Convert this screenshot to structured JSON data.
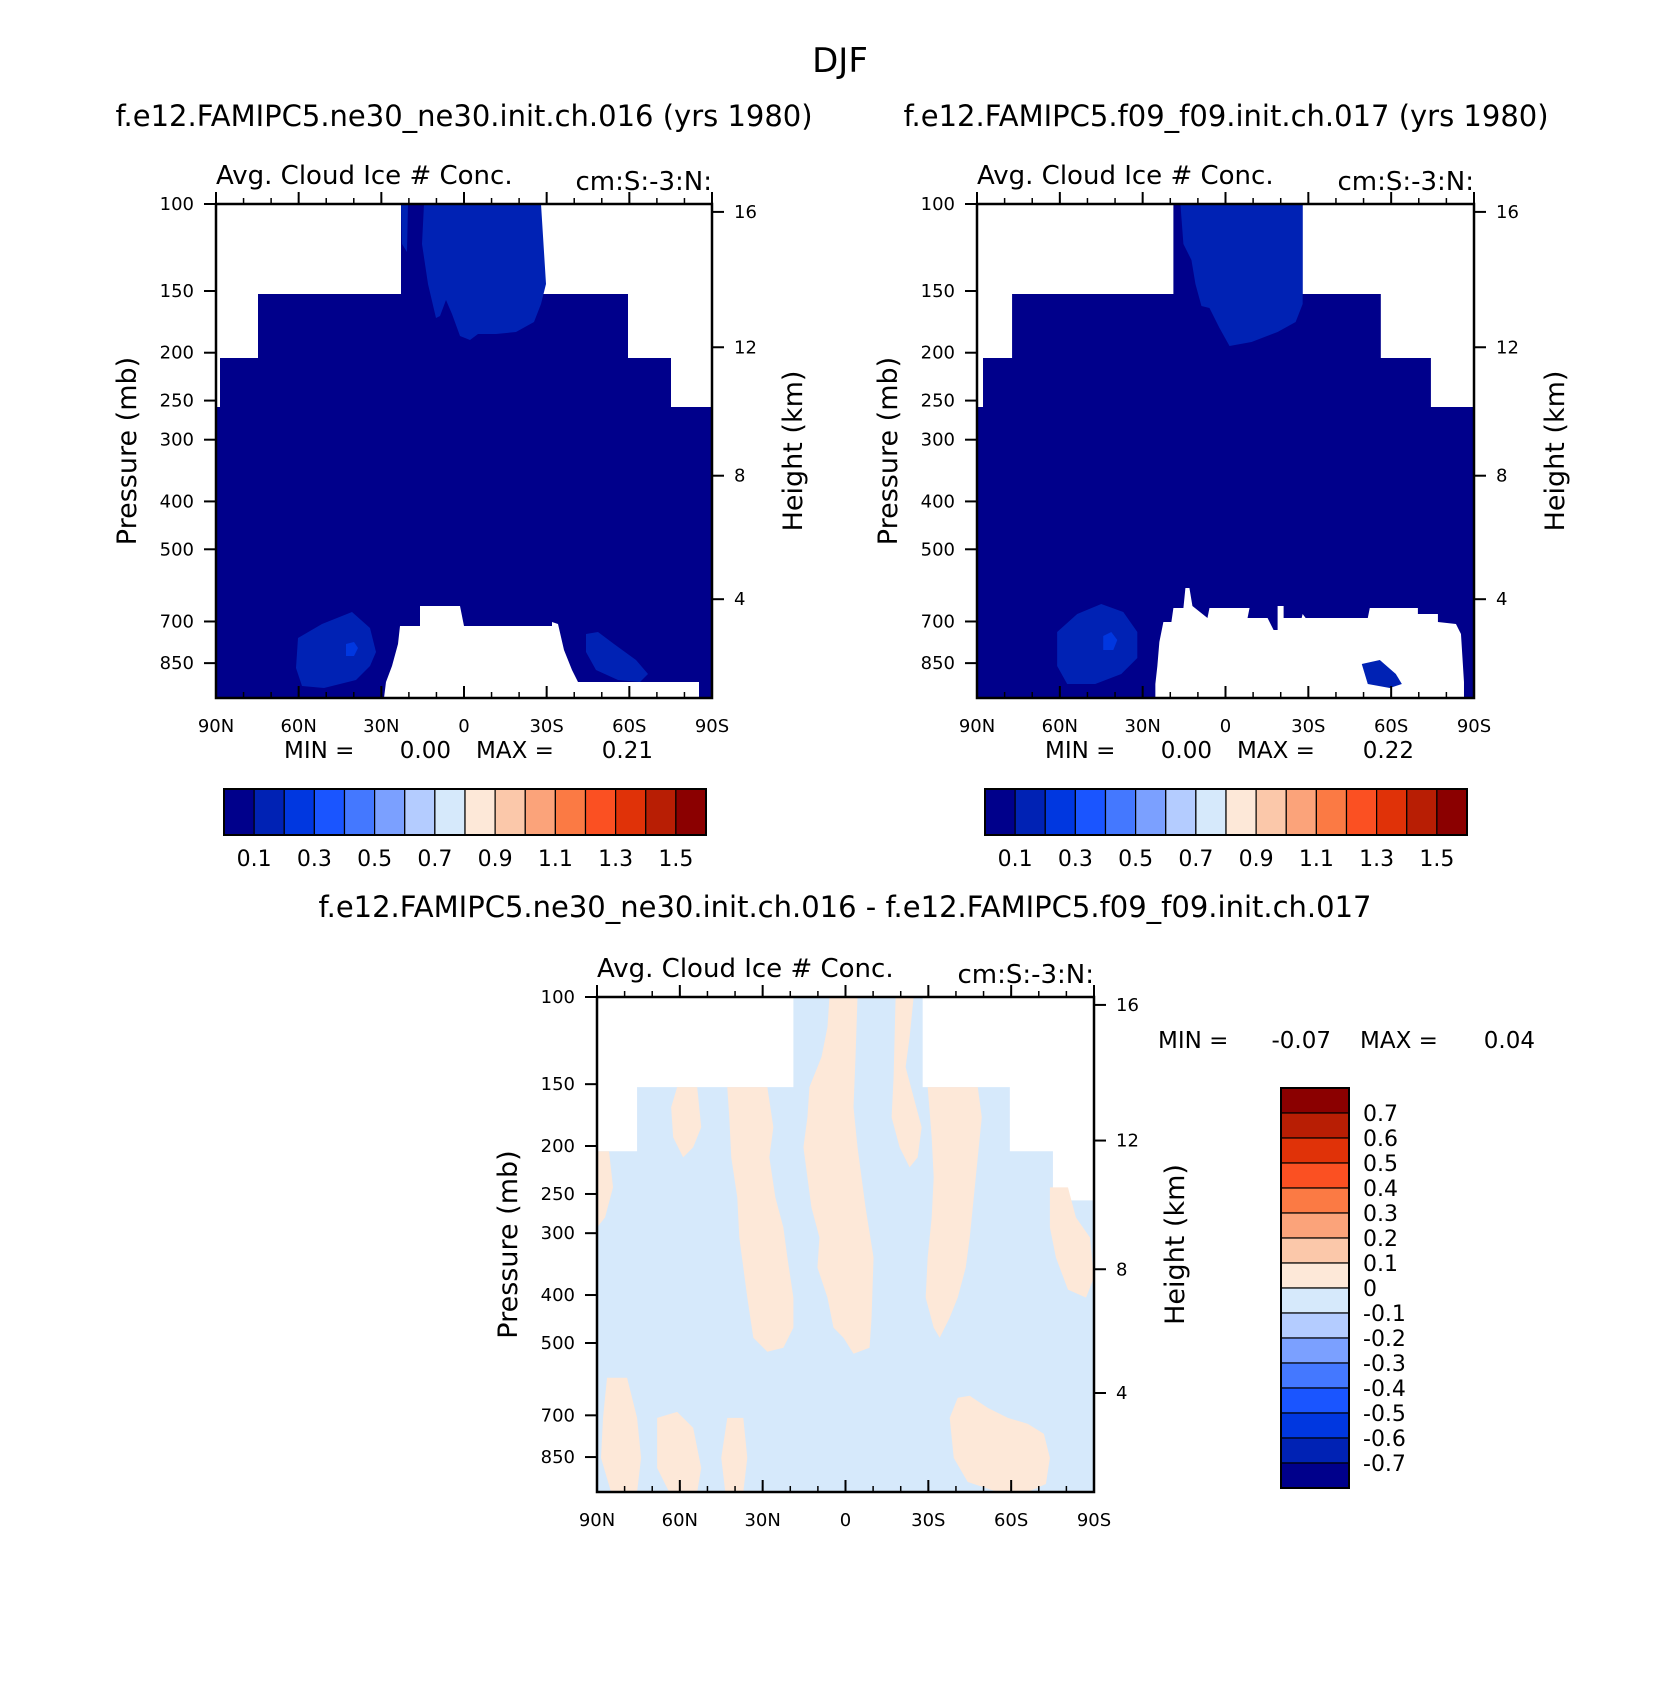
{
  "figure": {
    "title": "DJF",
    "panels": [
      {
        "id": "p1",
        "case_title": "f.e12.FAMIPC5.ne30_ne30.init.ch.016 (yrs 1980)",
        "var_title": "Avg. Cloud Ice # Conc.",
        "units": "cm:S:-3:N:",
        "ylabel": "Pressure (mb)",
        "ylabel_right": "Height (km)",
        "min_label": "MIN =",
        "min_value": "0.00",
        "max_label": "MAX =",
        "max_value": "0.21"
      },
      {
        "id": "p2",
        "case_title": "f.e12.FAMIPC5.f09_f09.init.ch.017 (yrs 1980)",
        "var_title": "Avg. Cloud Ice # Conc.",
        "units": "cm:S:-3:N:",
        "ylabel": "Pressure (mb)",
        "ylabel_right": "Height (km)",
        "min_label": "MIN =",
        "min_value": "0.00",
        "max_label": "MAX =",
        "max_value": "0.22"
      },
      {
        "id": "p3",
        "case_title": "f.e12.FAMIPC5.ne30_ne30.init.ch.016 - f.e12.FAMIPC5.f09_f09.init.ch.017",
        "var_title": "Avg. Cloud Ice # Conc.",
        "units": "cm:S:-3:N:",
        "ylabel": "Pressure (mb)",
        "ylabel_right": "Height (km)",
        "min_label": "MIN =",
        "min_value": "-0.07",
        "max_label": "MAX =",
        "max_value": "0.04"
      }
    ],
    "x_ticks": [
      "90N",
      "60N",
      "30N",
      "0",
      "30S",
      "60S",
      "90S"
    ],
    "y_ticks_pressure": [
      "100",
      "150",
      "200",
      "250",
      "300",
      "400",
      "500",
      "700",
      "850"
    ],
    "y_ticks_height": [
      "16",
      "12",
      "8",
      "4"
    ]
  },
  "colorbars": {
    "abs": {
      "colors": [
        "#00008b",
        "#0022b4",
        "#0037e0",
        "#1a55ff",
        "#4478ff",
        "#7ba0ff",
        "#b4ccff",
        "#d6e9fb",
        "#fde8d8",
        "#fbc8aa",
        "#fba37a",
        "#fb7a44",
        "#fb5022",
        "#e03208",
        "#b81e04",
        "#8b0000"
      ],
      "labels": [
        "0.1",
        "0.3",
        "0.5",
        "0.7",
        "0.9",
        "1.1",
        "1.3",
        "1.5"
      ]
    },
    "diff": {
      "colors": [
        "#8b0000",
        "#b81e04",
        "#e03208",
        "#fb5022",
        "#fb7a44",
        "#fba37a",
        "#fbc8aa",
        "#fde8d8",
        "#d6e9fb",
        "#b4ccff",
        "#7ba0ff",
        "#4478ff",
        "#1a55ff",
        "#0037e0",
        "#0022b4",
        "#00008b"
      ],
      "labels": [
        "0.7",
        "0.6",
        "0.5",
        "0.4",
        "0.3",
        "0.2",
        "0.1",
        "0",
        "-0.1",
        "-0.2",
        "-0.3",
        "-0.4",
        "-0.5",
        "-0.6",
        "-0.7"
      ]
    }
  },
  "chart_data": [
    {
      "type": "heatmap",
      "title": "f.e12.FAMIPC5.ne30_ne30.init.ch.016 (yrs 1980)",
      "subtitle": "Avg. Cloud Ice # Conc.",
      "units": "cm:S:-3:N:",
      "xlabel": "",
      "ylabel": "Pressure (mb)",
      "ylabel_right": "Height (km)",
      "x_ticks": [
        "90N",
        "60N",
        "30N",
        "0",
        "30S",
        "60S",
        "90S"
      ],
      "xlim": [
        90,
        -90
      ],
      "y_ticks": [
        100,
        150,
        200,
        250,
        300,
        400,
        500,
        700,
        850
      ],
      "ylim": [
        100,
        1000
      ],
      "y_scale": "log",
      "min": 0.0,
      "max": 0.21,
      "levels": [
        0.1,
        0.2,
        0.3,
        0.4,
        0.5,
        0.6,
        0.7,
        0.8,
        0.9,
        1.0,
        1.1,
        1.2,
        1.3,
        1.4,
        1.5
      ],
      "fill_lat_range_by_level": [
        {
          "p": 100,
          "lat": [
            23,
            -28
          ]
        },
        {
          "p": 150,
          "lat": [
            75,
            -58
          ]
        },
        {
          "p": 200,
          "lat": [
            88,
            -74
          ]
        },
        {
          "p": 250,
          "lat": [
            90,
            -90
          ]
        },
        {
          "p": 600,
          "lat": [
            90,
            -90
          ]
        },
        {
          "p": 700,
          "lat": [
            90,
            -90
          ]
        },
        {
          "p": 850,
          "lat": [
            90,
            -90
          ]
        }
      ],
      "no_data_below_ground": [
        {
          "p": 600,
          "lat": [
            15,
            1
          ]
        },
        {
          "p": 640,
          "lat": [
            24,
            -34
          ]
        },
        {
          "p": 850,
          "lat": [
            28,
            -40
          ]
        }
      ],
      "features": [
        {
          "level": "0-0.1",
          "region": "background"
        },
        {
          "level": "0.1-0.2",
          "region": "tropical upper troposphere",
          "lat": [
            17,
            -28
          ],
          "p": [
            100,
            190
          ]
        },
        {
          "level": "0.1-0.2",
          "region": "northern lower troposphere",
          "lat": [
            60,
            32
          ],
          "p": [
            620,
            850
          ]
        },
        {
          "level": "0.2",
          "region": "core",
          "lat": [
            42,
            38
          ],
          "p": [
            720,
            760
          ]
        },
        {
          "level": "0.1-0.2",
          "region": "southern lower troposphere",
          "lat": [
            -44,
            -67
          ],
          "p": [
            690,
            830
          ]
        }
      ]
    },
    {
      "type": "heatmap",
      "title": "f.e12.FAMIPC5.f09_f09.init.ch.017 (yrs 1980)",
      "subtitle": "Avg. Cloud Ice # Conc.",
      "units": "cm:S:-3:N:",
      "xlabel": "",
      "ylabel": "Pressure (mb)",
      "ylabel_right": "Height (km)",
      "x_ticks": [
        "90N",
        "60N",
        "30N",
        "0",
        "30S",
        "60S",
        "90S"
      ],
      "xlim": [
        90,
        -90
      ],
      "y_ticks": [
        100,
        150,
        200,
        250,
        300,
        400,
        500,
        700,
        850
      ],
      "ylim": [
        100,
        1000
      ],
      "y_scale": "log",
      "min": 0.0,
      "max": 0.22,
      "levels": [
        0.1,
        0.2,
        0.3,
        0.4,
        0.5,
        0.6,
        0.7,
        0.8,
        0.9,
        1.0,
        1.1,
        1.2,
        1.3,
        1.4,
        1.5
      ],
      "features": [
        {
          "level": "0-0.1",
          "region": "background"
        },
        {
          "level": "0.1-0.2",
          "region": "tropical upper troposphere",
          "lat": [
            18,
            -28
          ],
          "p": [
            100,
            195
          ]
        },
        {
          "level": "0.1-0.2",
          "region": "northern lower troposphere",
          "lat": [
            60,
            30
          ],
          "p": [
            620,
            850
          ]
        },
        {
          "level": "0.2",
          "region": "core",
          "lat": [
            43,
            37
          ],
          "p": [
            720,
            760
          ]
        },
        {
          "level": "0.1-0.2",
          "region": "southern lower troposphere",
          "lat": [
            -50,
            -66
          ],
          "p": [
            740,
            830
          ]
        }
      ]
    },
    {
      "type": "heatmap",
      "title": "f.e12.FAMIPC5.ne30_ne30.init.ch.016 - f.e12.FAMIPC5.f09_f09.init.ch.017",
      "subtitle": "Avg. Cloud Ice # Conc.",
      "units": "cm:S:-3:N:",
      "xlabel": "",
      "ylabel": "Pressure (mb)",
      "ylabel_right": "Height (km)",
      "x_ticks": [
        "90N",
        "60N",
        "30N",
        "0",
        "30S",
        "60S",
        "90S"
      ],
      "xlim": [
        90,
        -90
      ],
      "y_ticks": [
        100,
        150,
        200,
        250,
        300,
        400,
        500,
        700,
        850
      ],
      "ylim": [
        100,
        1000
      ],
      "y_scale": "log",
      "min": -0.07,
      "max": 0.04,
      "levels": [
        -0.7,
        -0.6,
        -0.5,
        -0.4,
        -0.3,
        -0.2,
        -0.1,
        0,
        0.1,
        0.2,
        0.3,
        0.4,
        0.5,
        0.6,
        0.7
      ],
      "features": [
        {
          "level": "-0.1-0",
          "region": "mostly light blue background"
        },
        {
          "level": "0-0.1",
          "region": "scattered light orange streaks across tropics and mid-latitudes"
        }
      ]
    }
  ]
}
